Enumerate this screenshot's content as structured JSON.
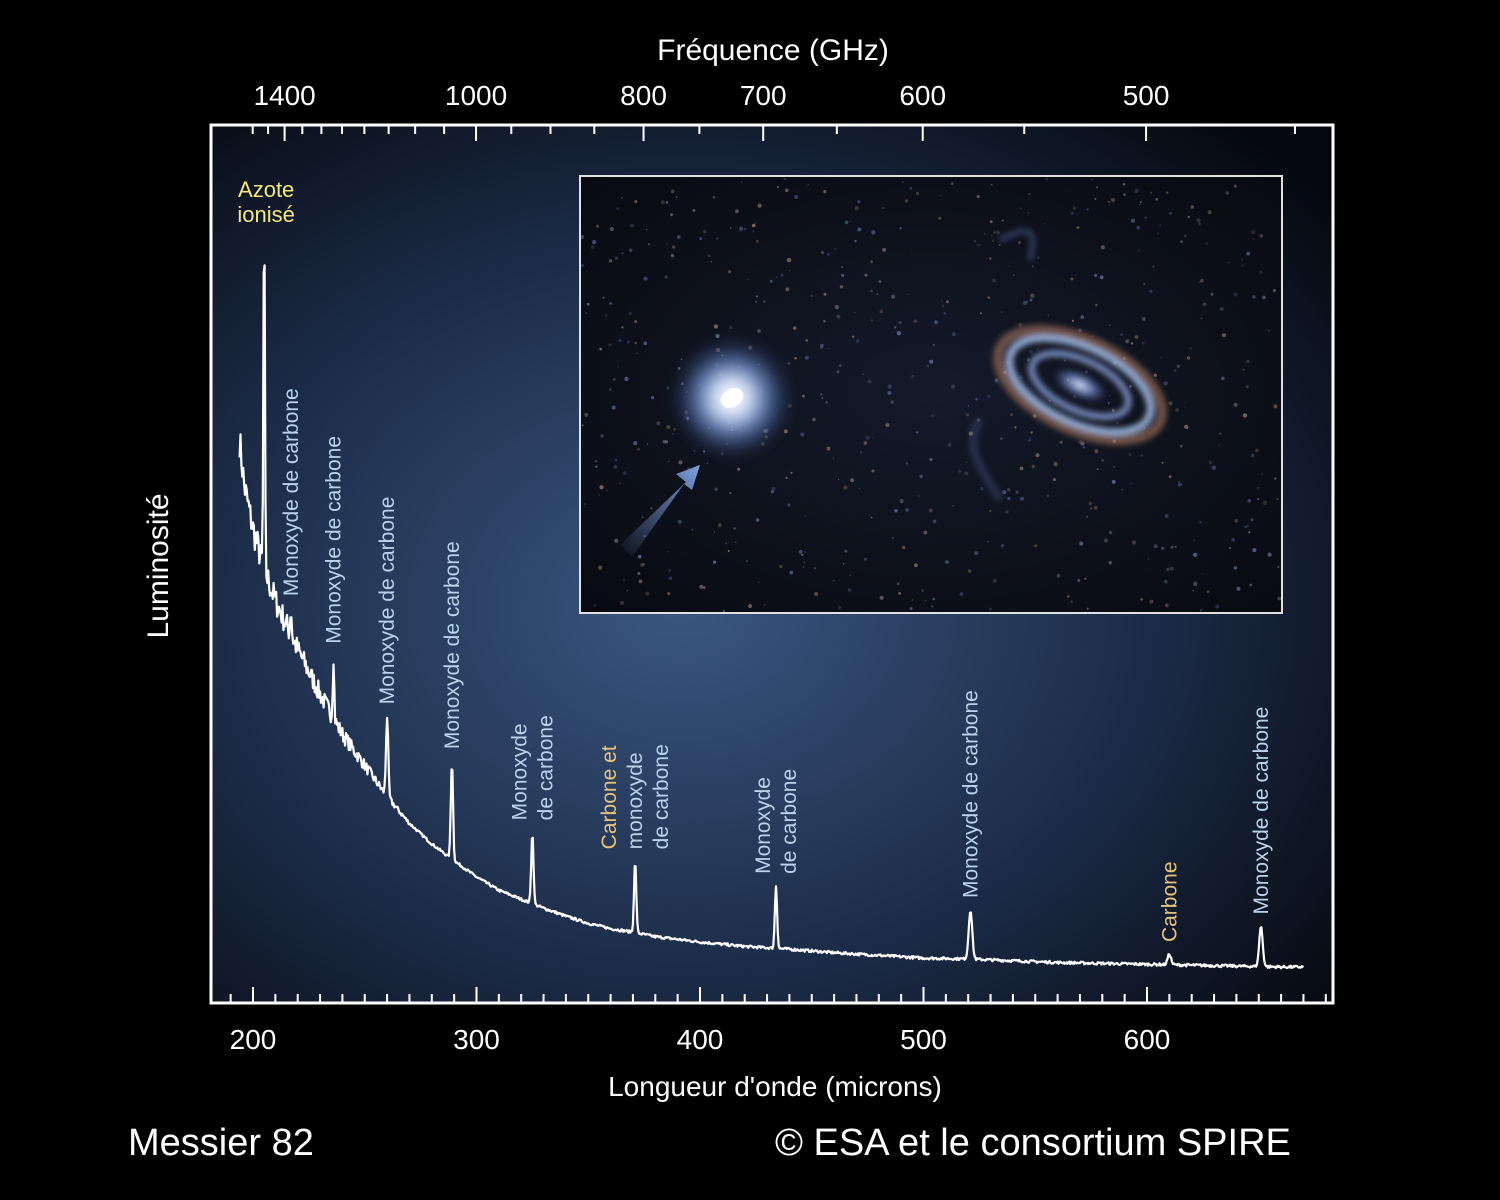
{
  "caption": {
    "object_name": "Messier 82",
    "credit": "© ESA et le consortium SPIRE"
  },
  "colors": {
    "background": "#000000",
    "panel_center": "#3a5680",
    "panel_edge": "#05070d",
    "spectrum_line": "#ffffff",
    "label_co": "#b9d3ea",
    "label_carbon": "#e8c27a",
    "label_nitrogen": "#f4e87a",
    "inset_arrow": "#6e92d0"
  },
  "chart_data": {
    "type": "line",
    "title": "",
    "xlabel": "Longueur d'onde (microns)",
    "ylabel": "Luminosité",
    "x2label": "Fréquence (GHz)",
    "xlim": [
      182,
      684
    ],
    "x_ticks": [
      200,
      300,
      400,
      500,
      600
    ],
    "x_tick_labels": [
      "200",
      "300",
      "400",
      "500",
      "600"
    ],
    "x2_ticks": [
      1400,
      1000,
      800,
      700,
      600,
      500
    ],
    "x2_tick_labels": [
      "1400",
      "1000",
      "800",
      "700",
      "600",
      "500"
    ],
    "y_scale": "relative (no tick labels)",
    "grid": false,
    "continuum": [
      [
        194,
        0.6
      ],
      [
        196,
        0.55
      ],
      [
        200,
        0.5
      ],
      [
        205,
        0.455
      ],
      [
        210,
        0.42
      ],
      [
        220,
        0.365
      ],
      [
        230,
        0.315
      ],
      [
        240,
        0.27
      ],
      [
        250,
        0.235
      ],
      [
        260,
        0.2
      ],
      [
        270,
        0.17
      ],
      [
        280,
        0.147
      ],
      [
        290,
        0.128
      ],
      [
        300,
        0.11
      ],
      [
        310,
        0.095
      ],
      [
        320,
        0.085
      ],
      [
        330,
        0.075
      ],
      [
        340,
        0.066
      ],
      [
        350,
        0.058
      ],
      [
        360,
        0.052
      ],
      [
        370,
        0.048
      ],
      [
        380,
        0.043
      ],
      [
        390,
        0.04
      ],
      [
        400,
        0.037
      ],
      [
        420,
        0.032
      ],
      [
        440,
        0.029
      ],
      [
        460,
        0.025
      ],
      [
        480,
        0.022
      ],
      [
        500,
        0.019
      ],
      [
        520,
        0.018
      ],
      [
        540,
        0.016
      ],
      [
        560,
        0.014
      ],
      [
        580,
        0.013
      ],
      [
        600,
        0.012
      ],
      [
        620,
        0.011
      ],
      [
        640,
        0.01
      ],
      [
        660,
        0.009
      ],
      [
        670,
        0.009
      ]
    ],
    "lines": [
      {
        "x": 205,
        "height": 0.4,
        "label": "Azote\nionisé",
        "species": "nitrogen"
      },
      {
        "x": 217,
        "height": 0.03,
        "label": "Monoxyde de carbone",
        "species": "co"
      },
      {
        "x": 236,
        "height": 0.07,
        "label": "Monoxyde de carbone",
        "species": "co"
      },
      {
        "x": 260,
        "height": 0.09,
        "label": "Monoxyde de carbone",
        "species": "co"
      },
      {
        "x": 289,
        "height": 0.11,
        "label": "Monoxyde de carbone",
        "species": "co"
      },
      {
        "x": 325,
        "height": 0.08,
        "label": "Monoxyde\nde carbone",
        "species": "co"
      },
      {
        "x": 371,
        "height": 0.08,
        "label": "Carbone et\nmonoxyde\nde carbone",
        "species": "mixed"
      },
      {
        "x": 434,
        "height": 0.07,
        "label": "Monoxyde\nde carbone",
        "species": "co"
      },
      {
        "x": 521,
        "height": 0.055,
        "label": "Monoxyde de carbone",
        "species": "co"
      },
      {
        "x": 610,
        "height": 0.012,
        "label": "Carbone",
        "species": "carbon"
      },
      {
        "x": 651,
        "height": 0.045,
        "label": "Monoxyde de carbone",
        "species": "co"
      }
    ],
    "legend": "none"
  },
  "inset": {
    "description_shown": false,
    "arrow_direction": "up-right"
  }
}
